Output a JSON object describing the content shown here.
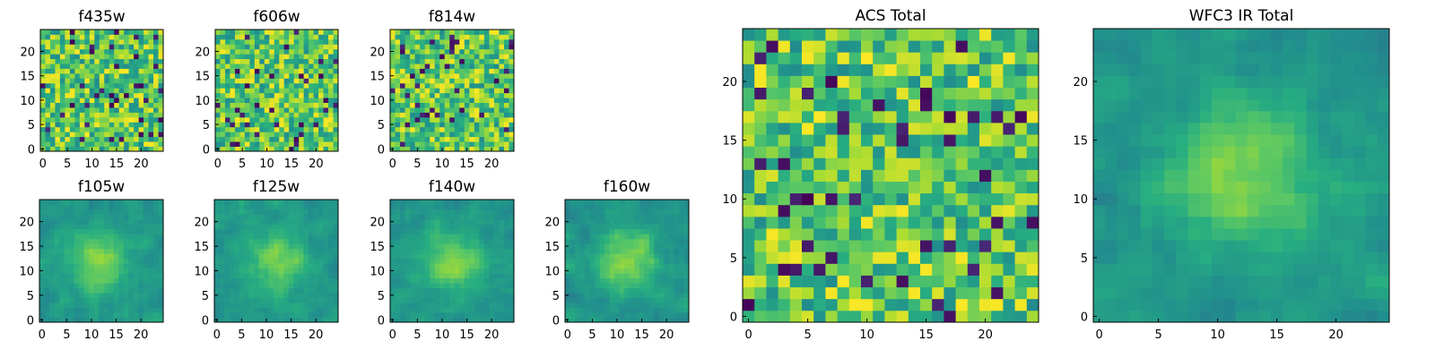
{
  "chart_data": [
    {
      "type": "heatmap",
      "title": "f435w",
      "xlim": [
        -0.5,
        24.5
      ],
      "ylim": [
        -0.5,
        24.5
      ],
      "xticks": [
        0,
        5,
        10,
        15,
        20
      ],
      "yticks": [
        0,
        5,
        10,
        15,
        20
      ],
      "grid_size": [
        25,
        25
      ],
      "colormap": "viridis",
      "texture": "noisy-uniform"
    },
    {
      "type": "heatmap",
      "title": "f606w",
      "xlim": [
        -0.5,
        24.5
      ],
      "ylim": [
        -0.5,
        24.5
      ],
      "xticks": [
        0,
        5,
        10,
        15,
        20
      ],
      "yticks": [
        0,
        5,
        10,
        15,
        20
      ],
      "grid_size": [
        25,
        25
      ],
      "colormap": "viridis",
      "texture": "noisy-uniform"
    },
    {
      "type": "heatmap",
      "title": "f814w",
      "xlim": [
        -0.5,
        24.5
      ],
      "ylim": [
        -0.5,
        24.5
      ],
      "xticks": [
        0,
        5,
        10,
        15,
        20
      ],
      "yticks": [
        0,
        5,
        10,
        15,
        20
      ],
      "grid_size": [
        25,
        25
      ],
      "colormap": "viridis",
      "texture": "noisy-uniform"
    },
    {
      "type": "heatmap",
      "title": "f105w",
      "xlim": [
        -0.5,
        24.5
      ],
      "ylim": [
        -0.5,
        24.5
      ],
      "xticks": [
        0,
        5,
        10,
        15,
        20
      ],
      "yticks": [
        0,
        5,
        10,
        15,
        20
      ],
      "grid_size": [
        25,
        25
      ],
      "colormap": "viridis",
      "texture": "smooth-central-blob"
    },
    {
      "type": "heatmap",
      "title": "f125w",
      "xlim": [
        -0.5,
        24.5
      ],
      "ylim": [
        -0.5,
        24.5
      ],
      "xticks": [
        0,
        5,
        10,
        15,
        20
      ],
      "yticks": [
        0,
        5,
        10,
        15,
        20
      ],
      "grid_size": [
        25,
        25
      ],
      "colormap": "viridis",
      "texture": "smooth-central-blob"
    },
    {
      "type": "heatmap",
      "title": "f140w",
      "xlim": [
        -0.5,
        24.5
      ],
      "ylim": [
        -0.5,
        24.5
      ],
      "xticks": [
        0,
        5,
        10,
        15,
        20
      ],
      "yticks": [
        0,
        5,
        10,
        15,
        20
      ],
      "grid_size": [
        25,
        25
      ],
      "colormap": "viridis",
      "texture": "smooth-central-blob"
    },
    {
      "type": "heatmap",
      "title": "f160w",
      "xlim": [
        -0.5,
        24.5
      ],
      "ylim": [
        -0.5,
        24.5
      ],
      "xticks": [
        0,
        5,
        10,
        15,
        20
      ],
      "yticks": [
        0,
        5,
        10,
        15,
        20
      ],
      "grid_size": [
        25,
        25
      ],
      "colormap": "viridis",
      "texture": "smooth-central-blob"
    },
    {
      "type": "heatmap",
      "title": "ACS Total",
      "xlim": [
        -0.5,
        24.5
      ],
      "ylim": [
        -0.5,
        24.5
      ],
      "xticks": [
        0,
        5,
        10,
        15,
        20
      ],
      "yticks": [
        0,
        5,
        10,
        15,
        20
      ],
      "grid_size": [
        25,
        25
      ],
      "colormap": "viridis",
      "texture": "noisy-uniform"
    },
    {
      "type": "heatmap",
      "title": "WFC3 IR Total",
      "xlim": [
        -0.5,
        24.5
      ],
      "ylim": [
        -0.5,
        24.5
      ],
      "xticks": [
        0,
        5,
        10,
        15,
        20
      ],
      "yticks": [
        0,
        5,
        10,
        15,
        20
      ],
      "grid_size": [
        25,
        25
      ],
      "colormap": "viridis",
      "texture": "smooth-central-blob"
    }
  ]
}
